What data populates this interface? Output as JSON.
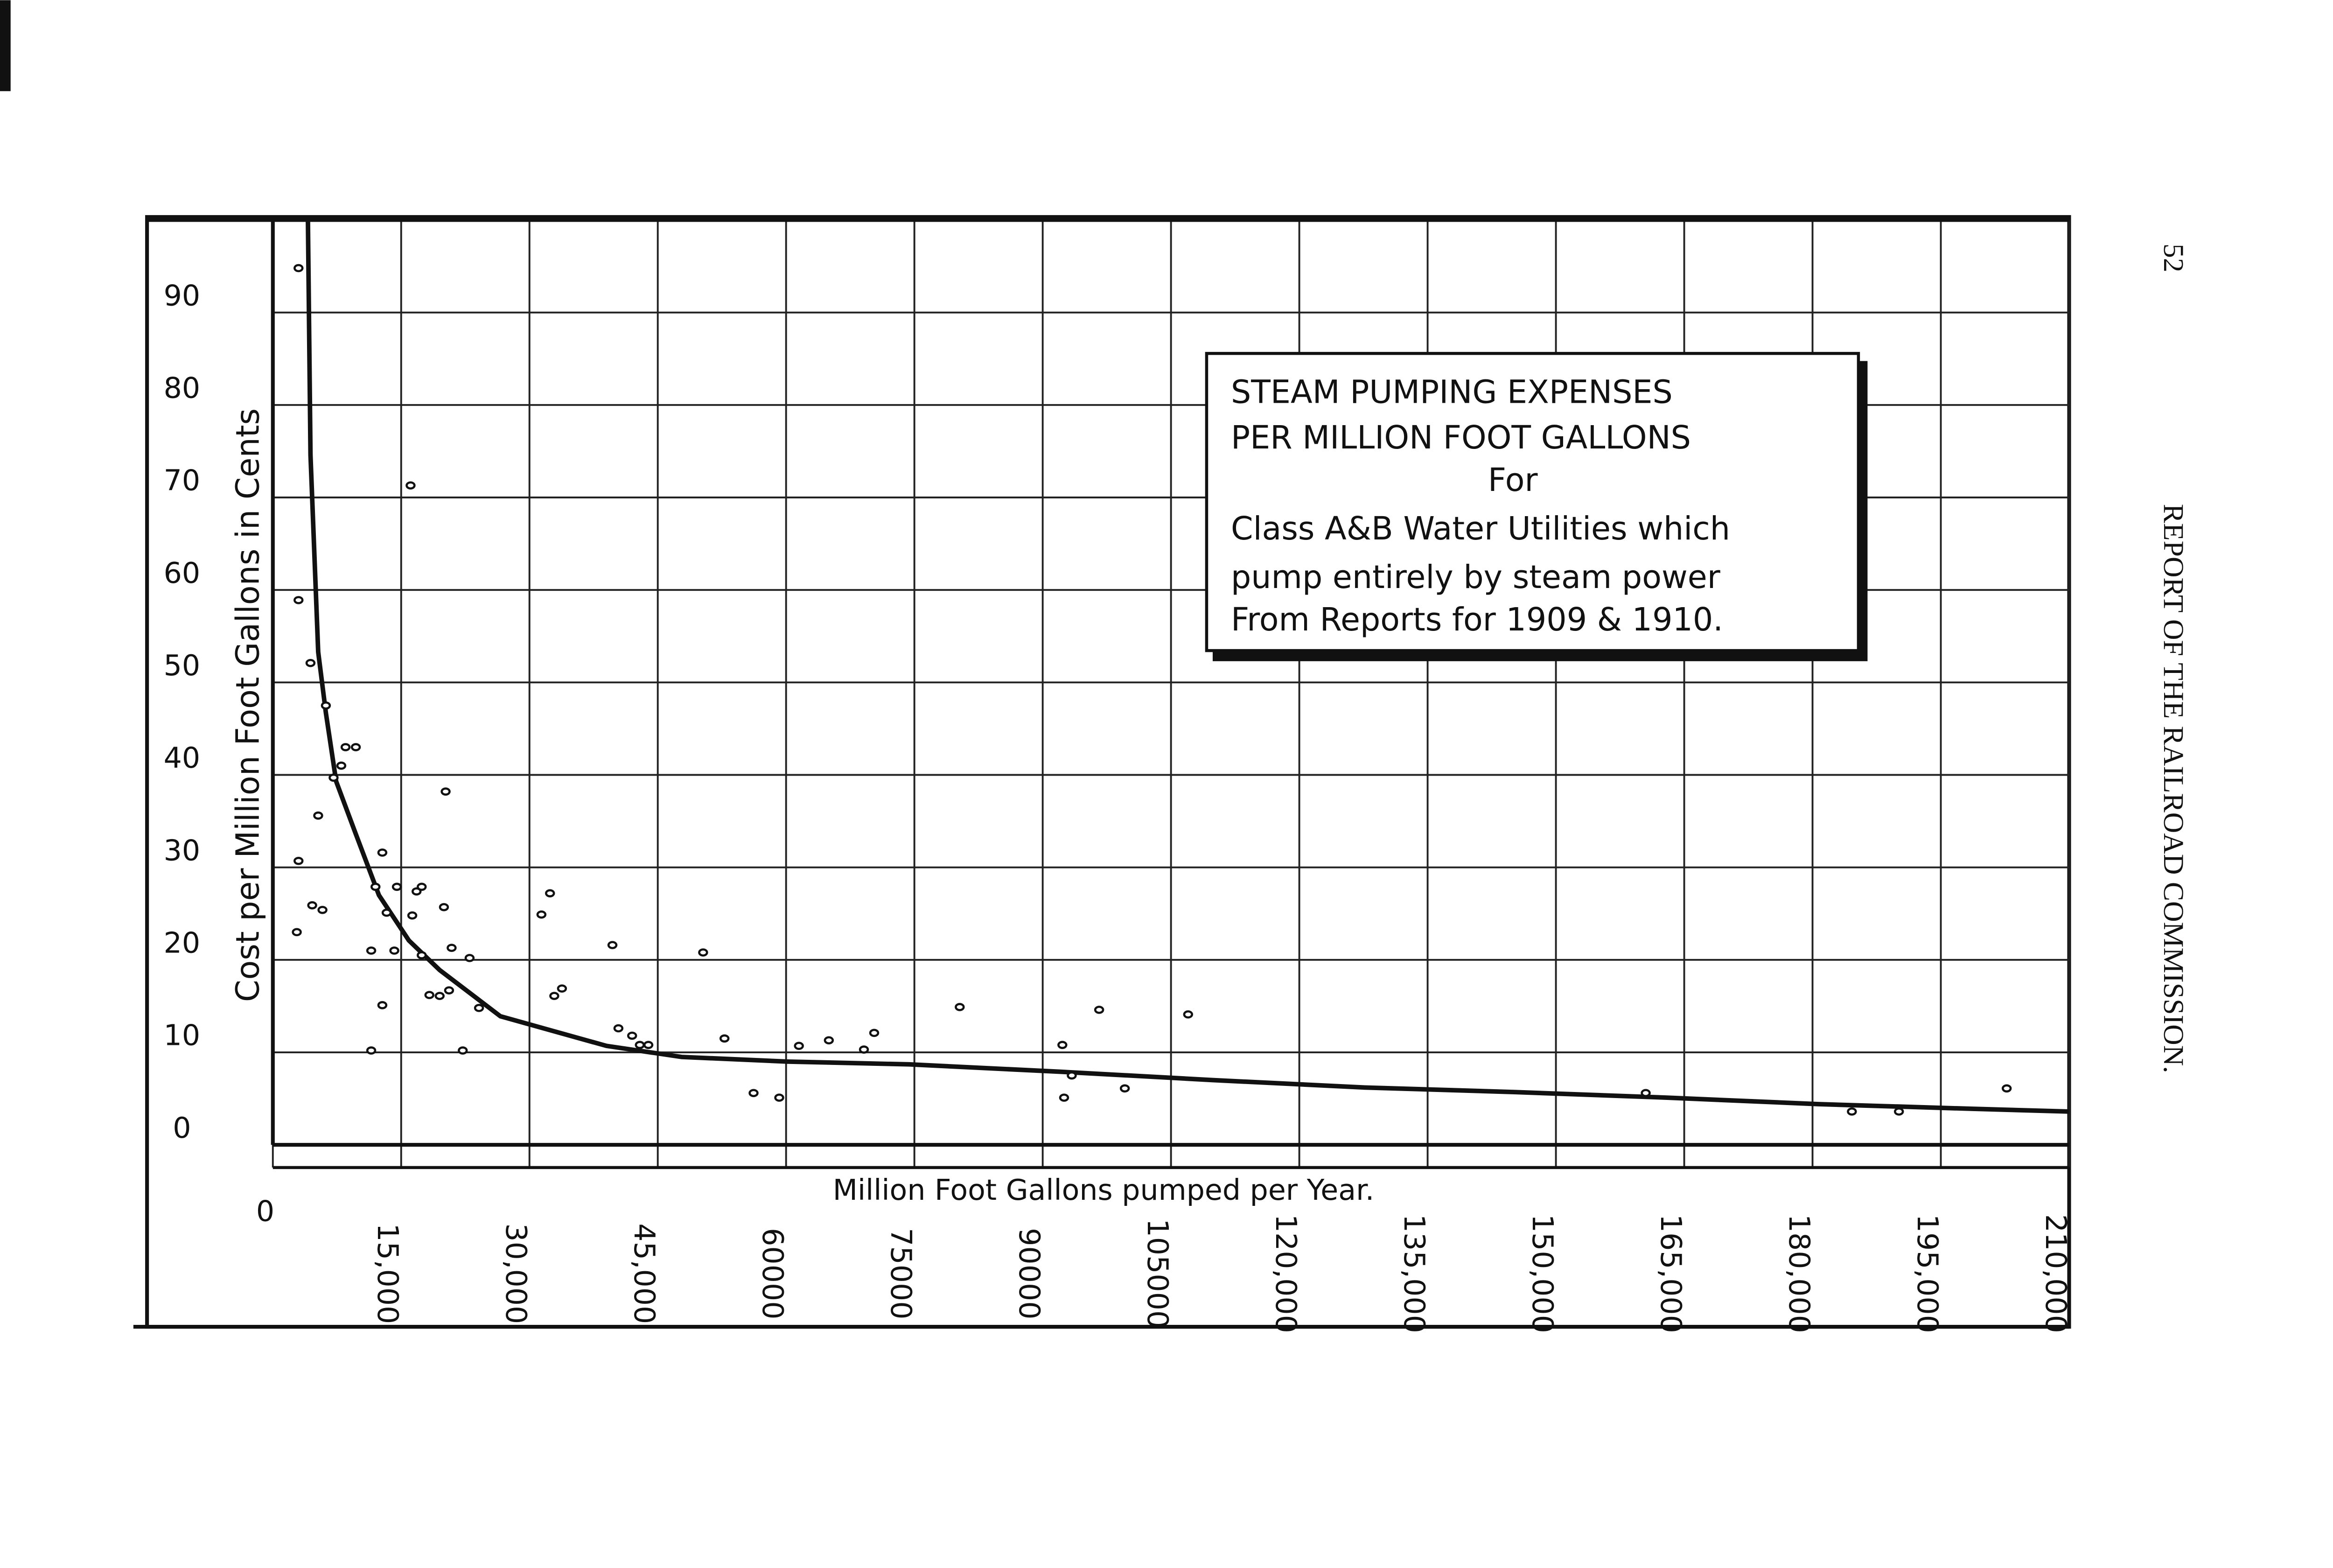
{
  "page": {
    "number": "52",
    "header": "REPORT OF THE RAILROAD COMMISSION."
  },
  "chart_data": {
    "type": "scatter",
    "title": [
      "STEAM PUMPING EXPENSES",
      "PER MILLION FOOT GALLONS"
    ],
    "subtitle": [
      "For",
      "Class A&B Water Utilities which",
      "pump entirely by steam power",
      "From Reports for 1909 & 1910."
    ],
    "x_label": "Million Foot Gallons pumped per Year.",
    "y_label": "Cost per Million Foot Gallons in Cents",
    "xlim": [
      0,
      210000
    ],
    "ylim": [
      0,
      100
    ],
    "xticks": [
      0,
      {
        "value": 15000,
        "label": "15,000"
      },
      {
        "value": 30000,
        "label": "30,000"
      },
      {
        "value": 45000,
        "label": "45,000"
      },
      60000,
      75000,
      90000,
      105000,
      {
        "value": 120000,
        "label": "120,000"
      },
      {
        "value": 135000,
        "label": "135,000"
      },
      {
        "value": 150000,
        "label": "150,000"
      },
      {
        "value": 165000,
        "label": "165,000"
      },
      {
        "value": 180000,
        "label": "180,000"
      },
      {
        "value": 195000,
        "label": "195,000"
      },
      {
        "value": 210000,
        "label": "210,000"
      }
    ],
    "yticks": [
      0,
      10,
      20,
      30,
      40,
      50,
      60,
      70,
      80,
      90
    ],
    "grid": true,
    "color": "#111111",
    "x": [
      3000,
      3000,
      4400,
      6200,
      8000,
      8500,
      9700,
      5300,
      3000,
      2800,
      4600,
      5800,
      7100,
      12800,
      12000,
      14500,
      16800,
      17400,
      13300,
      16300,
      20000,
      11500,
      14200,
      17400,
      20900,
      23000,
      20200,
      12800,
      18300,
      19500,
      20600,
      24100,
      11500,
      22200,
      16100,
      31400,
      32400,
      32900,
      33800,
      39700,
      40400,
      42000,
      42900,
      43900,
      50300,
      52800,
      56200,
      59200,
      61500,
      65000,
      69100,
      70300,
      80300,
      92300,
      93400,
      92500,
      96600,
      99600,
      107000,
      160500,
      184600,
      190100,
      202700
    ],
    "values": [
      94.8,
      58.9,
      52.1,
      47.5,
      41,
      43,
      43,
      35.6,
      30.7,
      23,
      25.9,
      25.4,
      39.7,
      31.6,
      27.9,
      27.9,
      27.4,
      27.9,
      25.1,
      24.8,
      25.7,
      21,
      21,
      20.5,
      21.3,
      20.2,
      38.2,
      15.1,
      16.2,
      16.1,
      16.7,
      14.8,
      10.2,
      10.2,
      71.3,
      24.9,
      27.2,
      16.1,
      16.9,
      21.6,
      12.6,
      11.8,
      10.8,
      10.8,
      20.8,
      11.5,
      5.6,
      5.1,
      10.7,
      11.3,
      10.3,
      12.1,
      14.9,
      10.8,
      7.5,
      5.1,
      14.6,
      6.1,
      14.1,
      5.6,
      3.6,
      3.6,
      6.1
    ],
    "curve": {
      "x": [
        4100,
        4400,
        5300,
        6200,
        7400,
        9700,
        12400,
        15900,
        19500,
        26600,
        39000,
        47800,
        60200,
        74400,
        92100,
        109900,
        127600,
        145300,
        163000,
        180700,
        198500,
        210000
      ],
      "values": [
        100,
        74.6,
        53.3,
        46.7,
        39.3,
        33.6,
        27,
        22.1,
        18.9,
        13.9,
        10.7,
        9.5,
        9.0,
        8.7,
        7.9,
        7,
        6.2,
        5.7,
        5.1,
        4.4,
        3.9,
        3.6
      ]
    }
  }
}
